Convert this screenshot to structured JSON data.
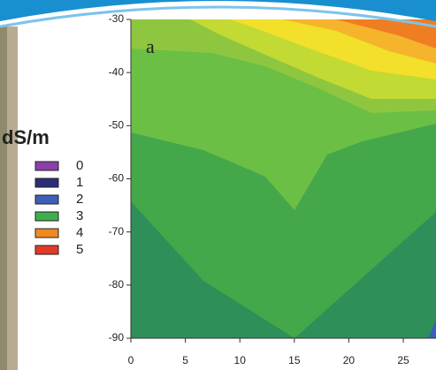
{
  "chart_data": {
    "type": "contour",
    "panel_label": "a",
    "legend_title": "dS/m",
    "legend": [
      {
        "name": "0",
        "color": "#8b3fa8"
      },
      {
        "name": "1",
        "color": "#2b2d7a"
      },
      {
        "name": "2",
        "color": "#3d5fb8"
      },
      {
        "name": "3",
        "color": "#3fae4a"
      },
      {
        "name": "4",
        "color": "#ef8a22"
      },
      {
        "name": "5",
        "color": "#e23a2a"
      }
    ],
    "xlim": [
      0,
      28
    ],
    "xticks": [
      0,
      5,
      10,
      15,
      20,
      25
    ],
    "ylim": [
      -90,
      -30
    ],
    "yticks": [
      -30,
      -40,
      -50,
      -60,
      -70,
      -80,
      -90
    ]
  }
}
